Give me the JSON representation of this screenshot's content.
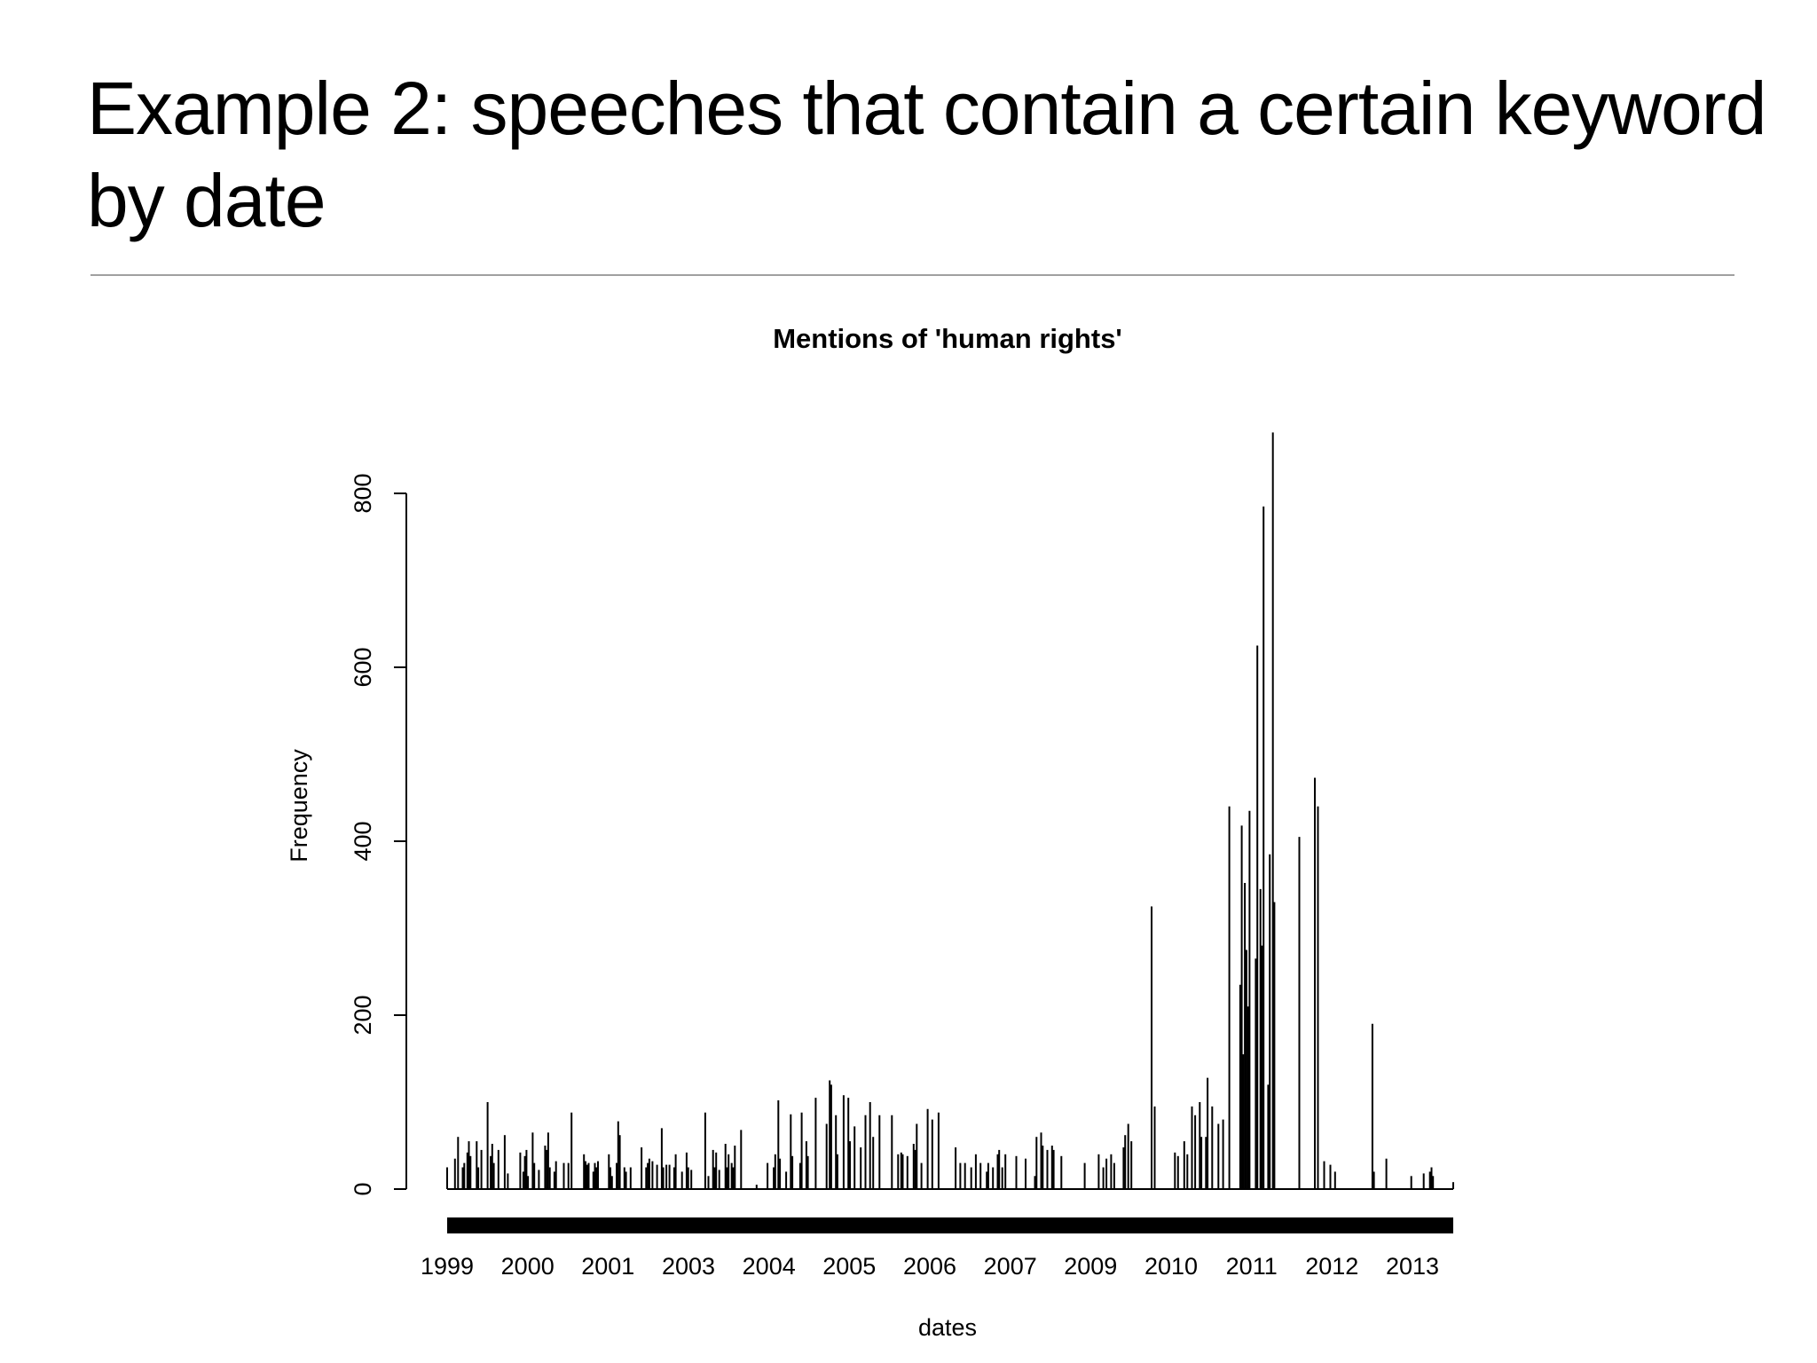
{
  "slide": {
    "title_line1": "Example 2: speeches that contain a certain keyword",
    "title_line2": "by date"
  },
  "chart_data": {
    "type": "bar",
    "title": "Mentions of 'human rights'",
    "xlabel": "dates",
    "ylabel": "Frequency",
    "ylim": [
      0,
      870
    ],
    "yticks": [
      0,
      200,
      400,
      600,
      800
    ],
    "xtick_labels": [
      "1999",
      "2000",
      "2001",
      "2003",
      "2004",
      "2005",
      "2006",
      "2007",
      "2009",
      "2010",
      "2011",
      "2012",
      "2013"
    ],
    "grid": false,
    "legend": "none",
    "color": "#000000",
    "values": [
      25,
      0,
      0,
      0,
      0,
      35,
      0,
      60,
      0,
      0,
      25,
      30,
      0,
      42,
      55,
      38,
      0,
      0,
      0,
      55,
      25,
      0,
      45,
      0,
      0,
      0,
      100,
      0,
      38,
      52,
      30,
      0,
      0,
      45,
      0,
      0,
      0,
      62,
      0,
      18,
      0,
      0,
      0,
      0,
      0,
      0,
      0,
      42,
      0,
      20,
      38,
      45,
      15,
      0,
      0,
      65,
      30,
      0,
      0,
      22,
      0,
      0,
      0,
      50,
      45,
      65,
      25,
      0,
      0,
      20,
      32,
      0,
      0,
      0,
      0,
      30,
      0,
      0,
      30,
      0,
      88,
      0,
      0,
      0,
      0,
      0,
      0,
      0,
      40,
      32,
      28,
      30,
      0,
      0,
      20,
      30,
      25,
      32,
      0,
      0,
      0,
      0,
      0,
      0,
      40,
      25,
      15,
      0,
      0,
      30,
      78,
      62,
      0,
      0,
      25,
      20,
      0,
      0,
      25,
      0,
      0,
      0,
      0,
      0,
      0,
      48,
      0,
      0,
      25,
      30,
      35,
      0,
      32,
      0,
      0,
      28,
      0,
      0,
      70,
      25,
      0,
      28,
      0,
      28,
      0,
      0,
      25,
      40,
      0,
      0,
      0,
      20,
      0,
      0,
      42,
      25,
      0,
      22,
      0,
      0,
      0,
      0,
      0,
      0,
      0,
      0,
      88,
      0,
      15,
      0,
      0,
      45,
      25,
      42,
      0,
      22,
      0,
      0,
      0,
      52,
      25,
      40,
      0,
      30,
      25,
      50,
      0,
      0,
      0,
      68,
      0,
      0,
      0,
      0,
      0,
      0,
      0,
      0,
      0,
      5,
      0,
      0,
      0,
      0,
      0,
      0,
      30,
      0,
      0,
      0,
      25,
      40,
      0,
      102,
      35,
      0,
      0,
      0,
      20,
      0,
      0,
      86,
      38,
      0,
      0,
      0,
      0,
      30,
      88,
      0,
      0,
      55,
      38,
      0,
      0,
      0,
      0,
      105,
      0,
      0,
      0,
      0,
      0,
      0,
      75,
      0,
      125,
      120,
      0,
      0,
      85,
      40,
      0,
      0,
      0,
      108,
      0,
      0,
      105,
      55,
      0,
      0,
      72,
      0,
      0,
      0,
      48,
      0,
      0,
      85,
      0,
      0,
      100,
      0,
      60,
      0,
      0,
      0,
      85,
      0,
      0,
      0,
      0,
      0,
      0,
      0,
      85,
      0,
      0,
      0,
      40,
      0,
      42,
      40,
      0,
      0,
      38,
      0,
      0,
      0,
      52,
      45,
      75,
      0,
      0,
      30,
      0,
      0,
      0,
      92,
      0,
      0,
      80,
      0,
      0,
      0,
      88,
      0,
      0,
      0,
      0,
      0,
      0,
      0,
      0,
      0,
      0,
      48,
      0,
      0,
      30,
      0,
      0,
      30,
      0,
      0,
      0,
      25,
      0,
      0,
      40,
      0,
      0,
      30,
      0,
      0,
      0,
      20,
      30,
      0,
      0,
      25,
      0,
      0,
      40,
      45,
      0,
      25,
      0,
      40,
      0,
      0,
      0,
      0,
      0,
      0,
      38,
      0,
      0,
      0,
      0,
      0,
      35,
      0,
      0,
      0,
      0,
      0,
      15,
      60,
      0,
      0,
      65,
      50,
      0,
      0,
      45,
      0,
      0,
      50,
      45,
      0,
      0,
      0,
      0,
      38,
      0,
      0,
      0,
      0,
      0,
      0,
      0,
      0,
      0,
      0,
      0,
      0,
      0,
      0,
      30,
      0,
      0,
      0,
      0,
      0,
      0,
      0,
      0,
      40,
      0,
      0,
      25,
      0,
      35,
      0,
      0,
      40,
      0,
      30,
      0,
      0,
      0,
      0,
      0,
      48,
      62,
      0,
      75,
      0,
      55,
      0,
      0,
      0,
      0,
      0,
      0,
      0,
      0,
      0,
      0,
      0,
      0,
      325,
      0,
      95,
      0,
      0,
      0,
      0,
      0,
      0,
      0,
      0,
      0,
      0,
      0,
      0,
      42,
      0,
      38,
      0,
      0,
      0,
      55,
      0,
      40,
      0,
      0,
      95,
      0,
      85,
      0,
      0,
      100,
      60,
      0,
      0,
      60,
      128,
      0,
      0,
      95,
      0,
      0,
      0,
      75,
      0,
      0,
      80,
      0,
      0,
      0,
      440,
      0,
      0,
      0,
      0,
      0,
      0,
      235,
      418,
      155,
      352,
      275,
      210,
      435,
      0,
      0,
      0,
      265,
      625,
      0,
      345,
      280,
      785,
      0,
      0,
      120,
      385,
      0,
      870,
      330,
      0,
      0,
      0,
      0,
      0,
      0,
      0,
      0,
      0,
      0,
      0,
      0,
      0,
      0,
      0,
      405,
      0,
      0,
      0,
      0,
      0,
      0,
      0,
      0,
      0,
      473,
      0,
      440,
      0,
      0,
      0,
      32,
      0,
      0,
      0,
      28,
      0,
      0,
      20,
      0,
      0,
      0,
      0,
      0,
      0,
      0,
      0,
      0,
      0,
      0,
      0,
      0,
      0,
      0,
      0,
      0,
      0,
      0,
      0,
      0,
      0,
      0,
      190,
      20,
      0,
      0,
      0,
      0,
      0,
      0,
      0,
      35,
      0,
      0,
      0,
      0,
      0,
      0,
      0,
      0,
      0,
      0,
      0,
      0,
      0,
      0,
      0,
      15,
      0,
      0,
      0,
      0,
      0,
      0,
      0,
      18,
      0,
      0,
      0,
      20,
      25,
      15,
      0,
      0,
      0,
      0,
      0,
      0,
      0,
      0,
      0,
      0,
      0,
      0,
      8
    ]
  }
}
